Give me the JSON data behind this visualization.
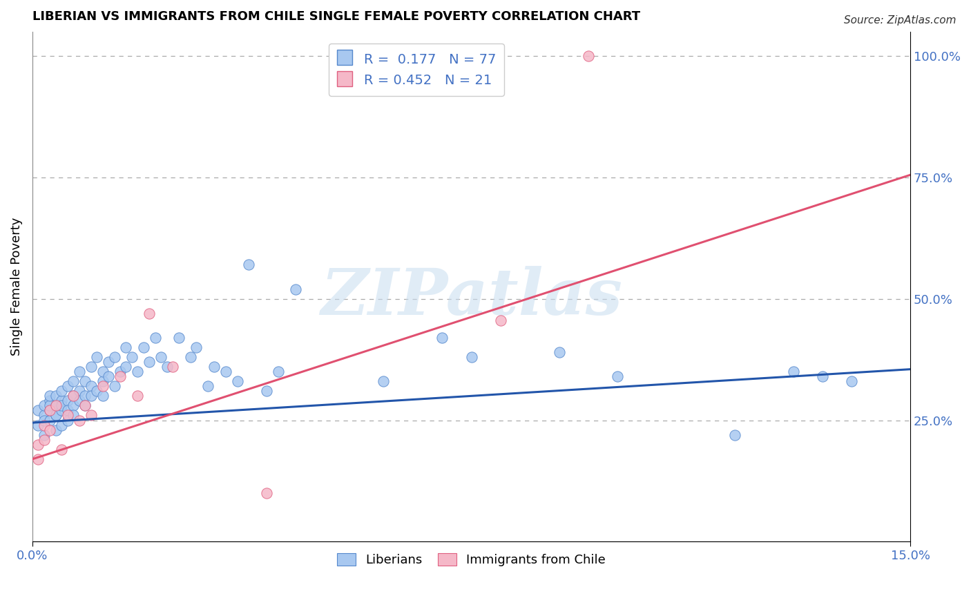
{
  "title": "LIBERIAN VS IMMIGRANTS FROM CHILE SINGLE FEMALE POVERTY CORRELATION CHART",
  "source": "Source: ZipAtlas.com",
  "ylabel": "Single Female Poverty",
  "xlim": [
    0.0,
    0.15
  ],
  "ylim": [
    0.0,
    1.05
  ],
  "ytick_labels": [
    "25.0%",
    "50.0%",
    "75.0%",
    "100.0%"
  ],
  "ytick_values": [
    0.25,
    0.5,
    0.75,
    1.0
  ],
  "legend1_label": "Liberians",
  "legend2_label": "Immigrants from Chile",
  "blue_color": "#a8c8f0",
  "pink_color": "#f5b8c8",
  "blue_edge_color": "#5588cc",
  "pink_edge_color": "#e06080",
  "blue_line_color": "#2255aa",
  "pink_line_color": "#e05070",
  "watermark_text": "ZIPatlas",
  "blue_R": 0.177,
  "blue_N": 77,
  "pink_R": 0.452,
  "pink_N": 21,
  "blue_line_x0": 0.0,
  "blue_line_y0": 0.245,
  "blue_line_x1": 0.15,
  "blue_line_y1": 0.355,
  "pink_line_x0": 0.0,
  "pink_line_y0": 0.17,
  "pink_line_x1": 0.15,
  "pink_line_y1": 0.755
}
